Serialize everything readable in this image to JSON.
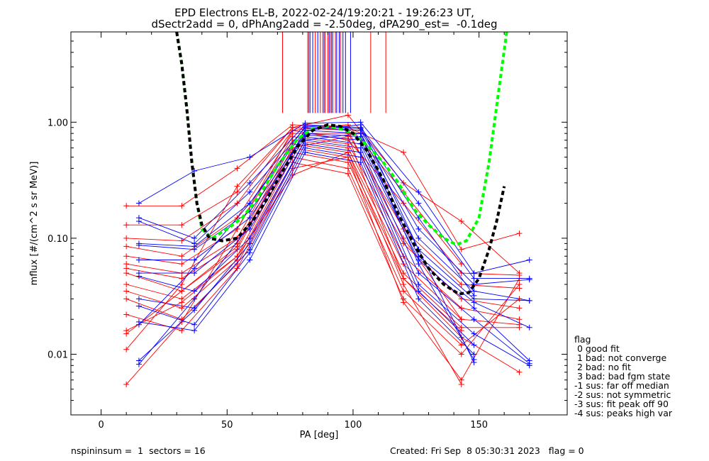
{
  "title_line1": "EPD Electrons EL-B, 2022-02-24/19:20:21 - 19:26:23 UT,",
  "title_line2": "dSectr2add = 0, dPhAng2add = -2.50deg, dPA290_est=  -0.1deg",
  "footer": {
    "left": "nspininsum =  1  sectors = 16",
    "right": "Created: Fri Sep  8 05:30:31 2023   flag = 0"
  },
  "legend": {
    "items": [
      "flag",
      " 0 good fit",
      " 1 bad: not converge",
      " 2 bad: no fit",
      " 3 bad: bad fgm state",
      "-1 sus: far off median",
      "-2 sus: not symmetric",
      "-3 sus: fit peak off 90",
      "-4 sus: peaks high var"
    ]
  },
  "colors": {
    "red": "#ff0000",
    "blue": "#0000ff",
    "green": "#00ff00",
    "black": "#000000"
  },
  "chart_data": {
    "type": "line",
    "xlabel": "PA [deg]",
    "ylabel": "mflux [#/(cm^2 s sr MeV)]",
    "xlim": [
      -12,
      185
    ],
    "ylim": [
      0.003,
      6.0
    ],
    "yscale": "log",
    "xticks": [
      0,
      50,
      100,
      150
    ],
    "xtick_labels": [
      "0",
      "50",
      "100",
      "150"
    ],
    "yticks": [
      0.01,
      0.1,
      1.0
    ],
    "ytick_labels": [
      "0.01",
      "0.10",
      "1.00"
    ],
    "peak_marker_lines": {
      "ymin": 1.2,
      "red_x": [
        72,
        82,
        83,
        85,
        87,
        88,
        89,
        90,
        91,
        92,
        93,
        95,
        107,
        113
      ],
      "blue_x": [
        82.5,
        84,
        86,
        88.5,
        90.5,
        91.5,
        93.5,
        94.5,
        96,
        97,
        99
      ]
    },
    "series": [
      {
        "color": "red",
        "x": [
          10,
          32,
          54,
          76,
          98,
          120,
          143,
          166
        ],
        "y": [
          0.19,
          0.19,
          0.4,
          0.95,
          0.9,
          0.55,
          0.08,
          0.11
        ]
      },
      {
        "color": "red",
        "x": [
          10,
          32,
          54,
          76,
          98,
          120,
          143,
          166
        ],
        "y": [
          0.13,
          0.13,
          0.25,
          0.9,
          1.15,
          0.3,
          0.14,
          0.05
        ]
      },
      {
        "color": "red",
        "x": [
          10,
          32,
          54,
          76,
          98,
          120,
          143,
          166
        ],
        "y": [
          0.1,
          0.095,
          0.2,
          0.85,
          0.7,
          0.2,
          0.05,
          0.048
        ]
      },
      {
        "color": "red",
        "x": [
          10,
          32,
          54,
          76,
          98,
          120,
          143,
          166
        ],
        "y": [
          0.085,
          0.07,
          0.15,
          0.8,
          0.8,
          0.12,
          0.04,
          0.037
        ]
      },
      {
        "color": "red",
        "x": [
          10,
          32,
          54,
          76,
          98,
          120,
          143,
          166
        ],
        "y": [
          0.07,
          0.06,
          0.12,
          0.75,
          0.65,
          0.09,
          0.03,
          0.025
        ]
      },
      {
        "color": "red",
        "x": [
          10,
          32,
          54,
          76,
          98,
          120,
          143,
          166
        ],
        "y": [
          0.06,
          0.05,
          0.1,
          0.7,
          0.6,
          0.07,
          0.025,
          0.02
        ]
      },
      {
        "color": "red",
        "x": [
          10,
          32,
          54,
          76,
          98,
          120,
          143,
          166
        ],
        "y": [
          0.055,
          0.045,
          0.09,
          0.65,
          0.55,
          0.06,
          0.02,
          0.018
        ]
      },
      {
        "color": "red",
        "x": [
          10,
          32,
          54,
          76,
          98,
          120,
          143,
          166
        ],
        "y": [
          0.05,
          0.035,
          0.08,
          0.6,
          0.5,
          0.05,
          0.017,
          0.017
        ]
      },
      {
        "color": "red",
        "x": [
          10,
          32,
          54,
          76,
          98,
          120,
          143,
          166
        ],
        "y": [
          0.04,
          0.03,
          0.07,
          0.55,
          0.45,
          0.045,
          0.014,
          0.007
        ]
      },
      {
        "color": "red",
        "x": [
          10,
          32,
          54,
          76,
          98,
          120,
          143,
          166
        ],
        "y": [
          0.035,
          0.025,
          0.065,
          0.5,
          0.4,
          0.035,
          0.012,
          0.03
        ]
      },
      {
        "color": "red",
        "x": [
          10,
          32,
          54,
          76,
          98,
          120,
          143,
          166
        ],
        "y": [
          0.03,
          0.02,
          0.06,
          0.45,
          0.36,
          0.03,
          0.01,
          0.04
        ]
      },
      {
        "color": "red",
        "x": [
          10,
          32,
          54,
          76,
          98,
          120,
          143,
          166
        ],
        "y": [
          0.022,
          0.016,
          0.055,
          0.4,
          0.5,
          0.028,
          0.006,
          0.045
        ]
      },
      {
        "color": "red",
        "x": [
          10,
          32,
          54,
          76,
          98,
          120,
          143
        ],
        "y": [
          0.016,
          0.028,
          0.07,
          0.35,
          0.55,
          0.04,
          0.0055
        ]
      },
      {
        "color": "red",
        "x": [
          10,
          32,
          54,
          76,
          98,
          120,
          143
        ],
        "y": [
          0.015,
          0.035,
          0.085,
          0.6,
          0.75,
          0.045,
          0.016
        ]
      },
      {
        "color": "red",
        "x": [
          10,
          32,
          54,
          76,
          98,
          120,
          143
        ],
        "y": [
          0.011,
          0.04,
          0.28,
          0.9,
          0.85,
          0.1,
          0.02
        ]
      },
      {
        "color": "red",
        "x": [
          10,
          32,
          54,
          76,
          98,
          120,
          143
        ],
        "y": [
          0.0055,
          0.019,
          0.12,
          0.85,
          0.95,
          0.25,
          0.06
        ]
      },
      {
        "color": "blue",
        "x": [
          15,
          37,
          59,
          81,
          103,
          126,
          148,
          170
        ],
        "y": [
          0.2,
          0.38,
          0.5,
          0.98,
          1.0,
          0.25,
          0.05,
          0.065
        ]
      },
      {
        "color": "blue",
        "x": [
          15,
          37,
          59,
          81,
          103,
          126,
          148,
          170
        ],
        "y": [
          0.15,
          0.1,
          0.3,
          0.95,
          0.9,
          0.2,
          0.045,
          0.045
        ]
      },
      {
        "color": "blue",
        "x": [
          15,
          37,
          59,
          81,
          103,
          126,
          148,
          170
        ],
        "y": [
          0.14,
          0.09,
          0.25,
          0.9,
          0.85,
          0.12,
          0.04,
          0.044
        ]
      },
      {
        "color": "blue",
        "x": [
          15,
          37,
          59,
          81,
          103,
          126,
          148,
          170
        ],
        "y": [
          0.09,
          0.085,
          0.2,
          0.85,
          0.8,
          0.1,
          0.035,
          0.029
        ]
      },
      {
        "color": "blue",
        "x": [
          15,
          37,
          59,
          81,
          103,
          126,
          148,
          170
        ],
        "y": [
          0.087,
          0.08,
          0.17,
          0.8,
          0.75,
          0.08,
          0.03,
          0.029
        ]
      },
      {
        "color": "blue",
        "x": [
          15,
          37,
          59,
          81,
          103,
          126,
          148,
          170
        ],
        "y": [
          0.065,
          0.065,
          0.15,
          0.78,
          0.7,
          0.07,
          0.028,
          0.017
        ]
      },
      {
        "color": "blue",
        "x": [
          15,
          37,
          59,
          81,
          103,
          126,
          148,
          170
        ],
        "y": [
          0.05,
          0.05,
          0.12,
          0.75,
          0.65,
          0.065,
          0.025,
          0.0088
        ]
      },
      {
        "color": "blue",
        "x": [
          15,
          37,
          59,
          81,
          103,
          126,
          148,
          170
        ],
        "y": [
          0.047,
          0.035,
          0.1,
          0.7,
          0.6,
          0.05,
          0.02,
          0.0083
        ]
      },
      {
        "color": "blue",
        "x": [
          15,
          37,
          59,
          81,
          103,
          126,
          148,
          170
        ],
        "y": [
          0.03,
          0.025,
          0.08,
          0.65,
          0.55,
          0.04,
          0.015,
          0.008
        ]
      },
      {
        "color": "blue",
        "x": [
          15,
          37,
          59,
          81,
          103,
          126,
          148
        ],
        "y": [
          0.026,
          0.018,
          0.075,
          0.6,
          0.5,
          0.035,
          0.012
        ]
      },
      {
        "color": "blue",
        "x": [
          15,
          37,
          59,
          81,
          103,
          126,
          148
        ],
        "y": [
          0.019,
          0.016,
          0.065,
          0.55,
          0.45,
          0.03,
          0.01
        ]
      },
      {
        "color": "blue",
        "x": [
          15,
          37,
          59,
          81,
          103,
          126,
          148
        ],
        "y": [
          0.0088,
          0.024,
          0.09,
          0.7,
          0.8,
          0.06,
          0.009
        ]
      },
      {
        "color": "blue",
        "x": [
          15,
          37,
          59,
          81,
          103,
          126,
          148
        ],
        "y": [
          0.0082,
          0.03,
          0.13,
          0.85,
          0.95,
          0.08,
          0.0085
        ]
      },
      {
        "color": "blue",
        "x": [
          15,
          37,
          59,
          81,
          103,
          126,
          148
        ],
        "y": [
          0.018,
          0.055,
          0.2,
          0.92,
          0.88,
          0.15,
          0.032
        ]
      }
    ],
    "fits": [
      {
        "color": "green",
        "style": "dashed",
        "x": [
          30,
          32,
          34,
          36,
          38,
          40,
          44,
          50,
          56,
          62,
          70,
          78,
          84,
          90,
          95,
          100,
          106,
          112,
          118,
          124,
          130,
          136,
          141,
          145,
          150,
          154,
          158,
          161
        ],
        "y": [
          6.0,
          3.2,
          1.3,
          0.45,
          0.2,
          0.12,
          0.1,
          0.12,
          0.15,
          0.22,
          0.42,
          0.72,
          0.88,
          0.92,
          0.88,
          0.8,
          0.62,
          0.45,
          0.3,
          0.18,
          0.13,
          0.1,
          0.088,
          0.095,
          0.15,
          0.45,
          2.0,
          6.0
        ]
      },
      {
        "color": "black",
        "style": "dashed",
        "x": [
          30,
          32,
          34,
          36,
          38,
          40,
          43,
          48,
          54,
          60,
          66,
          72,
          78,
          84,
          90,
          95,
          100,
          106,
          112,
          118,
          124,
          130,
          136,
          142,
          146,
          150,
          154,
          157,
          160
        ],
        "y": [
          6.0,
          3.2,
          1.3,
          0.45,
          0.2,
          0.13,
          0.1,
          0.095,
          0.1,
          0.14,
          0.22,
          0.38,
          0.62,
          0.85,
          0.95,
          0.92,
          0.8,
          0.55,
          0.32,
          0.16,
          0.09,
          0.055,
          0.04,
          0.033,
          0.034,
          0.045,
          0.08,
          0.14,
          0.28
        ]
      }
    ]
  }
}
